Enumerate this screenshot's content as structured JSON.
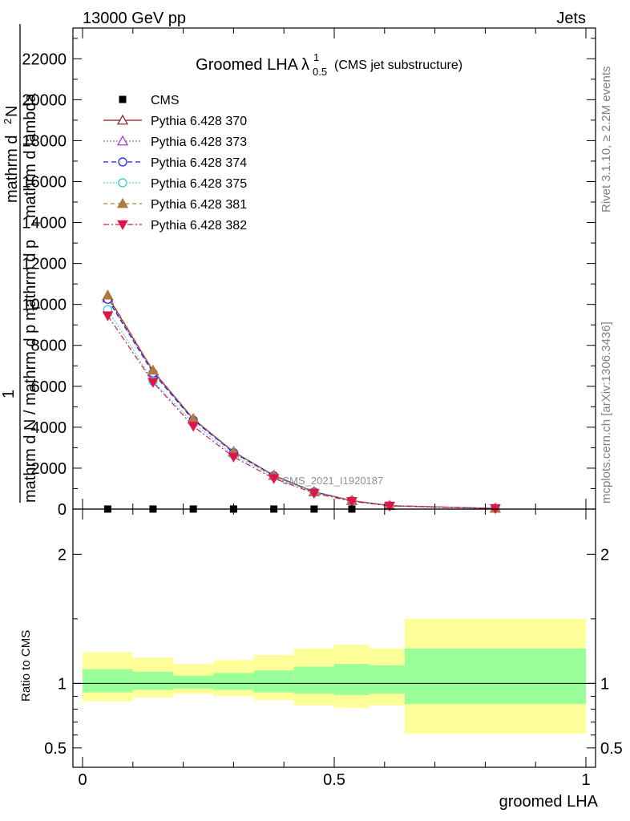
{
  "header": {
    "energy_label": "13000 GeV pp",
    "category_label": "Jets",
    "title_main": "Groomed LHA",
    "title_lambda": "λ",
    "title_sup": "1",
    "title_sub": "0.5",
    "title_paren": "(CMS jet substructure)"
  },
  "side_labels": {
    "rivet": "Rivet 3.1.10, ≥ 2.2M events",
    "mcplots": "mcplots.cern.ch [arXiv:1306.3436]"
  },
  "watermark": "CMS_2021_I1920187",
  "ylabel_main": {
    "line1": "mathrm d",
    "line1_sup": "2",
    "line1_tail": "N",
    "line2": "mathrm d p",
    "line2_sub": "T",
    "line2_tail": " mathrm d lambda",
    "prefix": "1",
    "denominator": "mathrm d N / mathrm d p",
    "denominator_sub": "T"
  },
  "ylabel_ratio": "Ratio to CMS",
  "xlabel": "groomed LHA",
  "legend": {
    "entries": [
      "CMS",
      "Pythia 6.428 370",
      "Pythia 6.428 373",
      "Pythia 6.428 374",
      "Pythia 6.428 375",
      "Pythia 6.428 381",
      "Pythia 6.428 382"
    ]
  },
  "colors": {
    "cms": "#000000",
    "s370": "#8b1a1a",
    "s373": "#9b30d0",
    "s374": "#1a1ae6",
    "s375": "#1ad0c8",
    "s381": "#b07a3e",
    "s382": "#e0154b",
    "band_inner": "#99ff99",
    "band_outer": "#ffff99"
  },
  "chart_data": {
    "type": "line",
    "main": {
      "xlim": [
        0,
        1
      ],
      "ylim": [
        0,
        23500
      ],
      "y_ticks": [
        "0",
        "2000",
        "4000",
        "6000",
        "8000",
        "10000",
        "12000",
        "14000",
        "16000",
        "18000",
        "20000",
        "22000"
      ],
      "x": [
        0.05,
        0.14,
        0.22,
        0.3,
        0.38,
        0.46,
        0.535,
        0.61,
        0.82
      ],
      "cms": [
        3,
        3,
        3,
        3,
        3,
        3,
        3,
        null,
        null
      ],
      "series": [
        {
          "name": "Pythia 6.428 370",
          "values": [
            10400,
            6750,
            4400,
            2800,
            1650,
            850,
            420,
            170,
            35
          ]
        },
        {
          "name": "Pythia 6.428 373",
          "values": [
            10300,
            6700,
            4380,
            2780,
            1640,
            845,
            415,
            168,
            34
          ]
        },
        {
          "name": "Pythia 6.428 374",
          "values": [
            10250,
            6650,
            4350,
            2760,
            1630,
            840,
            412,
            166,
            33
          ]
        },
        {
          "name": "Pythia 6.428 375",
          "values": [
            9750,
            6250,
            4200,
            2650,
            1580,
            810,
            400,
            162,
            32
          ]
        },
        {
          "name": "Pythia 6.428 381",
          "values": [
            10450,
            6780,
            4420,
            2810,
            1660,
            855,
            425,
            172,
            36
          ]
        },
        {
          "name": "Pythia 6.428 382",
          "values": [
            9450,
            6200,
            4050,
            2550,
            1500,
            780,
            380,
            155,
            30
          ]
        }
      ]
    },
    "ratio": {
      "ylim": [
        0.35,
        2.35
      ],
      "y_ticks": [
        "0.5",
        "1",
        "2"
      ],
      "x_ticks": [
        "0",
        "0.5",
        "1"
      ],
      "bins": [
        {
          "lo": 0.0,
          "hi": 0.1,
          "inner": [
            0.93,
            1.11
          ],
          "outer": [
            0.86,
            1.24
          ]
        },
        {
          "lo": 0.1,
          "hi": 0.18,
          "inner": [
            0.95,
            1.09
          ],
          "outer": [
            0.89,
            1.2
          ]
        },
        {
          "lo": 0.18,
          "hi": 0.26,
          "inner": [
            0.96,
            1.06
          ],
          "outer": [
            0.92,
            1.15
          ]
        },
        {
          "lo": 0.26,
          "hi": 0.34,
          "inner": [
            0.95,
            1.08
          ],
          "outer": [
            0.9,
            1.18
          ]
        },
        {
          "lo": 0.34,
          "hi": 0.42,
          "inner": [
            0.93,
            1.1
          ],
          "outer": [
            0.87,
            1.22
          ]
        },
        {
          "lo": 0.42,
          "hi": 0.5,
          "inner": [
            0.92,
            1.13
          ],
          "outer": [
            0.83,
            1.27
          ]
        },
        {
          "lo": 0.5,
          "hi": 0.57,
          "inner": [
            0.91,
            1.15
          ],
          "outer": [
            0.81,
            1.3
          ]
        },
        {
          "lo": 0.57,
          "hi": 0.64,
          "inner": [
            0.92,
            1.14
          ],
          "outer": [
            0.83,
            1.27
          ]
        },
        {
          "lo": 0.64,
          "hi": 1.0,
          "inner": [
            0.84,
            1.27
          ],
          "outer": [
            0.61,
            1.5
          ]
        }
      ]
    }
  }
}
